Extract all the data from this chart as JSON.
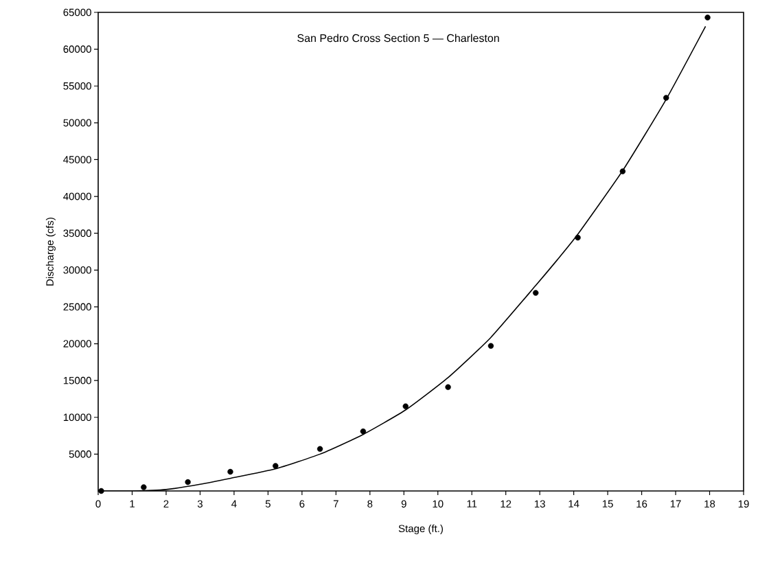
{
  "chart_data": {
    "type": "scatter",
    "title": "San Pedro Cross Section 5 — Charleston",
    "xlabel": "Stage  (ft.)",
    "ylabel": "Discharge (cfs)",
    "xlim": [
      0,
      19
    ],
    "xticks": [
      0,
      1,
      2,
      3,
      4,
      5,
      6,
      7,
      8,
      9,
      10,
      11,
      12,
      13,
      14,
      15,
      16,
      17,
      18,
      19
    ],
    "ylim": [
      0,
      65000
    ],
    "yticks": [
      5000,
      10000,
      15000,
      20000,
      25000,
      30000,
      35000,
      40000,
      45000,
      50000,
      55000,
      60000,
      65000
    ],
    "grid": false,
    "series": [
      {
        "color": "#000000",
        "marker": "circle",
        "x": [
          0.09,
          1.34,
          2.64,
          3.89,
          5.22,
          6.53,
          7.8,
          9.05,
          10.3,
          11.56,
          12.88,
          14.12,
          15.44,
          16.72,
          17.94
        ],
        "values": [
          0,
          500,
          1200,
          2600,
          3400,
          5700,
          8100,
          11500,
          14100,
          19700,
          26900,
          34400,
          43400,
          53400,
          64300
        ]
      },
      {
        "type": "line",
        "color": "#000000",
        "line_style": "solid",
        "x": [
          0,
          1,
          2,
          3,
          3.88,
          5.22,
          6.53,
          7.77,
          9.05,
          10.3,
          11.55,
          12.88,
          13.5,
          14.11,
          15.44,
          16.71,
          17.88
        ],
        "values": [
          0,
          0,
          200,
          900,
          1700,
          3000,
          5000,
          7600,
          11000,
          15400,
          20800,
          27900,
          31300,
          34800,
          43500,
          53100,
          63100
        ]
      }
    ]
  }
}
